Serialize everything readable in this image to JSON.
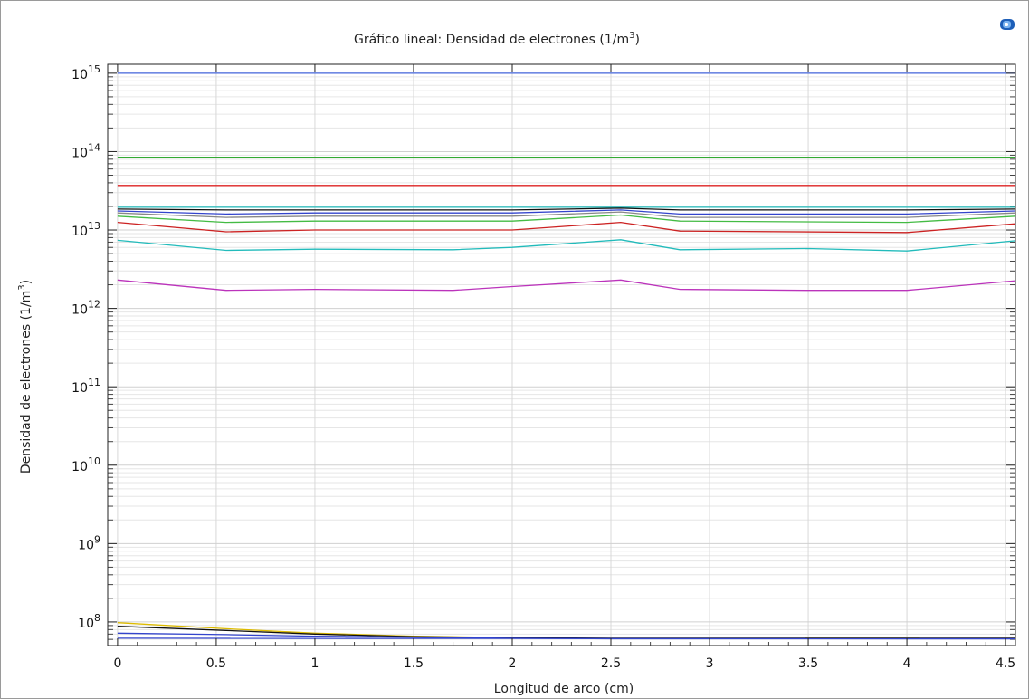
{
  "chart_data": {
    "type": "line",
    "title_prefix": "Gráfico lineal: Densidad de electrones (1/m",
    "title_sup": "3",
    "title_suffix": ")",
    "xlabel": "Longitud de arco (cm)",
    "ylabel_prefix": "Densidad de electrones (1/m",
    "ylabel_sup": "3",
    "ylabel_suffix": ")",
    "xlim": [
      -0.05,
      4.55
    ],
    "ylim": [
      50000000,
      1300000000000000
    ],
    "yscale": "log",
    "grid": true,
    "x_ticks": [
      {
        "v": 0,
        "label": "0"
      },
      {
        "v": 0.5,
        "label": "0.5"
      },
      {
        "v": 1,
        "label": "1"
      },
      {
        "v": 1.5,
        "label": "1.5"
      },
      {
        "v": 2,
        "label": "2"
      },
      {
        "v": 2.5,
        "label": "2.5"
      },
      {
        "v": 3,
        "label": "3"
      },
      {
        "v": 3.5,
        "label": "3.5"
      },
      {
        "v": 4,
        "label": "4"
      },
      {
        "v": 4.5,
        "label": "4.5"
      }
    ],
    "y_ticks": [
      {
        "exp": 8,
        "base": "10",
        "sup": "8"
      },
      {
        "exp": 9,
        "base": "10",
        "sup": "9"
      },
      {
        "exp": 10,
        "base": "10",
        "sup": "10"
      },
      {
        "exp": 11,
        "base": "10",
        "sup": "11"
      },
      {
        "exp": 12,
        "base": "10",
        "sup": "12"
      },
      {
        "exp": 13,
        "base": "10",
        "sup": "13"
      },
      {
        "exp": 14,
        "base": "10",
        "sup": "14"
      },
      {
        "exp": 15,
        "base": "10",
        "sup": "15"
      }
    ],
    "series": [
      {
        "color": "#4466dd",
        "x": [
          0,
          4.55
        ],
        "y": [
          1000000000000000.0,
          1000000000000000.0
        ]
      },
      {
        "color": "#33aa33",
        "x": [
          0,
          4.55
        ],
        "y": [
          85000000000000.0,
          85000000000000.0
        ]
      },
      {
        "color": "#dd2222",
        "x": [
          0,
          4.55
        ],
        "y": [
          37000000000000.0,
          37000000000000.0
        ]
      },
      {
        "color": "#22bbbb",
        "x": [
          0,
          4.55
        ],
        "y": [
          19500000000000.0,
          19500000000000.0
        ]
      },
      {
        "color": "#111111",
        "x": [
          0,
          0.55,
          1,
          2,
          2.55,
          2.85,
          4,
          4.55
        ],
        "y": [
          18500000000000.0,
          18000000000000.0,
          18000000000000.0,
          18000000000000.0,
          19000000000000.0,
          18000000000000.0,
          18000000000000.0,
          18500000000000.0
        ]
      },
      {
        "color": "#3344cc",
        "x": [
          0,
          0.55,
          1,
          2,
          2.55,
          2.85,
          4,
          4.55
        ],
        "y": [
          17500000000000.0,
          16000000000000.0,
          16500000000000.0,
          16500000000000.0,
          18000000000000.0,
          16000000000000.0,
          16000000000000.0,
          17500000000000.0
        ]
      },
      {
        "color": "#888888",
        "x": [
          0,
          0.55,
          1,
          2,
          2.55,
          2.85,
          4,
          4.55
        ],
        "y": [
          16500000000000.0,
          14500000000000.0,
          15000000000000.0,
          15000000000000.0,
          17000000000000.0,
          14500000000000.0,
          14500000000000.0,
          16500000000000.0
        ]
      },
      {
        "color": "#44bb44",
        "x": [
          0,
          0.55,
          1,
          2,
          2.55,
          2.85,
          4,
          4.55
        ],
        "y": [
          15000000000000.0,
          12500000000000.0,
          13000000000000.0,
          13000000000000.0,
          15500000000000.0,
          13000000000000.0,
          12500000000000.0,
          15000000000000.0
        ]
      },
      {
        "color": "#cc2222",
        "x": [
          0,
          0.55,
          1,
          2,
          2.55,
          2.85,
          4,
          4.55
        ],
        "y": [
          12500000000000.0,
          9500000000000.0,
          10000000000000.0,
          10000000000000.0,
          12500000000000.0,
          9700000000000.0,
          9300000000000.0,
          12000000000000.0
        ]
      },
      {
        "color": "#22bbbb",
        "x": [
          0,
          0.55,
          1,
          1.7,
          2,
          2.55,
          2.85,
          3.5,
          4,
          4.55
        ],
        "y": [
          7400000000000.0,
          5500000000000.0,
          5700000000000.0,
          5600000000000.0,
          6000000000000.0,
          7500000000000.0,
          5600000000000.0,
          5800000000000.0,
          5400000000000.0,
          7300000000000.0
        ]
      },
      {
        "color": "#bb33bb",
        "x": [
          0,
          0.55,
          1,
          1.7,
          2,
          2.55,
          2.85,
          3.5,
          4,
          4.55
        ],
        "y": [
          2300000000000.0,
          1700000000000.0,
          1750000000000.0,
          1700000000000.0,
          1900000000000.0,
          2300000000000.0,
          1750000000000.0,
          1700000000000.0,
          1700000000000.0,
          2250000000000.0
        ]
      },
      {
        "color": "#ddbb00",
        "x": [
          0,
          0.55,
          1,
          1.5,
          2,
          2.5,
          3,
          4,
          4.55
        ],
        "y": [
          98000000.0,
          82000000.0,
          72000000.0,
          66000000.0,
          63000000.0,
          62000000.0,
          62000000.0,
          62000000.0,
          62000000.0
        ]
      },
      {
        "color": "#111111",
        "x": [
          0,
          0.55,
          1,
          1.5,
          2,
          2.5,
          3,
          4,
          4.55
        ],
        "y": [
          88000000.0,
          78000000.0,
          70000000.0,
          65000000.0,
          63000000.0,
          62000000.0,
          62000000.0,
          62000000.0,
          62000000.0
        ]
      },
      {
        "color": "#3344cc",
        "x": [
          0,
          0.55,
          1,
          1.5,
          2,
          2.5,
          3,
          4,
          4.55
        ],
        "y": [
          72000000.0,
          69000000.0,
          66000000.0,
          64000000.0,
          62000000.0,
          61000000.0,
          61000000.0,
          61000000.0,
          61000000.0
        ]
      },
      {
        "color": "#3344cc",
        "x": [
          0,
          4.55
        ],
        "y": [
          62000000.0,
          61000000.0
        ]
      }
    ]
  }
}
